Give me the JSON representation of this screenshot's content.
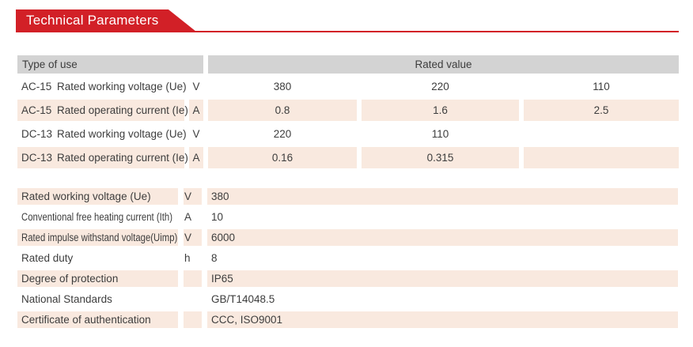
{
  "title": "Technical Parameters",
  "colors": {
    "accent_red": "#d22027",
    "row_pink": "#f9e9df",
    "header_gray": "#d3d3d3",
    "text_dark": "#3d3d3d"
  },
  "table1": {
    "header": {
      "type_of_use": "Type of use",
      "rated_value": "Rated value"
    },
    "rows": [
      {
        "type": "AC-15",
        "param": "Rated working voltage (Ue)",
        "unit": "V",
        "values": [
          "380",
          "220",
          "110"
        ]
      },
      {
        "type": "AC-15",
        "param": "Rated operating current (Ie)",
        "unit": "A",
        "values": [
          "0.8",
          "1.6",
          "2.5"
        ]
      },
      {
        "type": "DC-13",
        "param": "Rated working voltage (Ue)",
        "unit": "V",
        "values": [
          "220",
          "110",
          ""
        ]
      },
      {
        "type": "DC-13",
        "param": "Rated operating current (Ie)",
        "unit": "A",
        "values": [
          "0.16",
          "0.315",
          ""
        ]
      }
    ]
  },
  "table2": {
    "rows": [
      {
        "param": "Rated working voltage (Ue)",
        "unit": "V",
        "value": "380"
      },
      {
        "param": "Conventional free heating current (Ith)",
        "unit": "A",
        "value": "10"
      },
      {
        "param": "Rated impulse withstand voltage(Uimp)",
        "unit": "V",
        "value": "6000"
      },
      {
        "param": "Rated duty",
        "unit": "h",
        "value": "8"
      },
      {
        "param": "Degree of protection",
        "unit": "",
        "value": "IP65"
      },
      {
        "param": "National Standards",
        "unit": "",
        "value": "GB/T14048.5"
      },
      {
        "param": "Certificate of authentication",
        "unit": "",
        "value": "CCC, ISO9001"
      }
    ]
  }
}
